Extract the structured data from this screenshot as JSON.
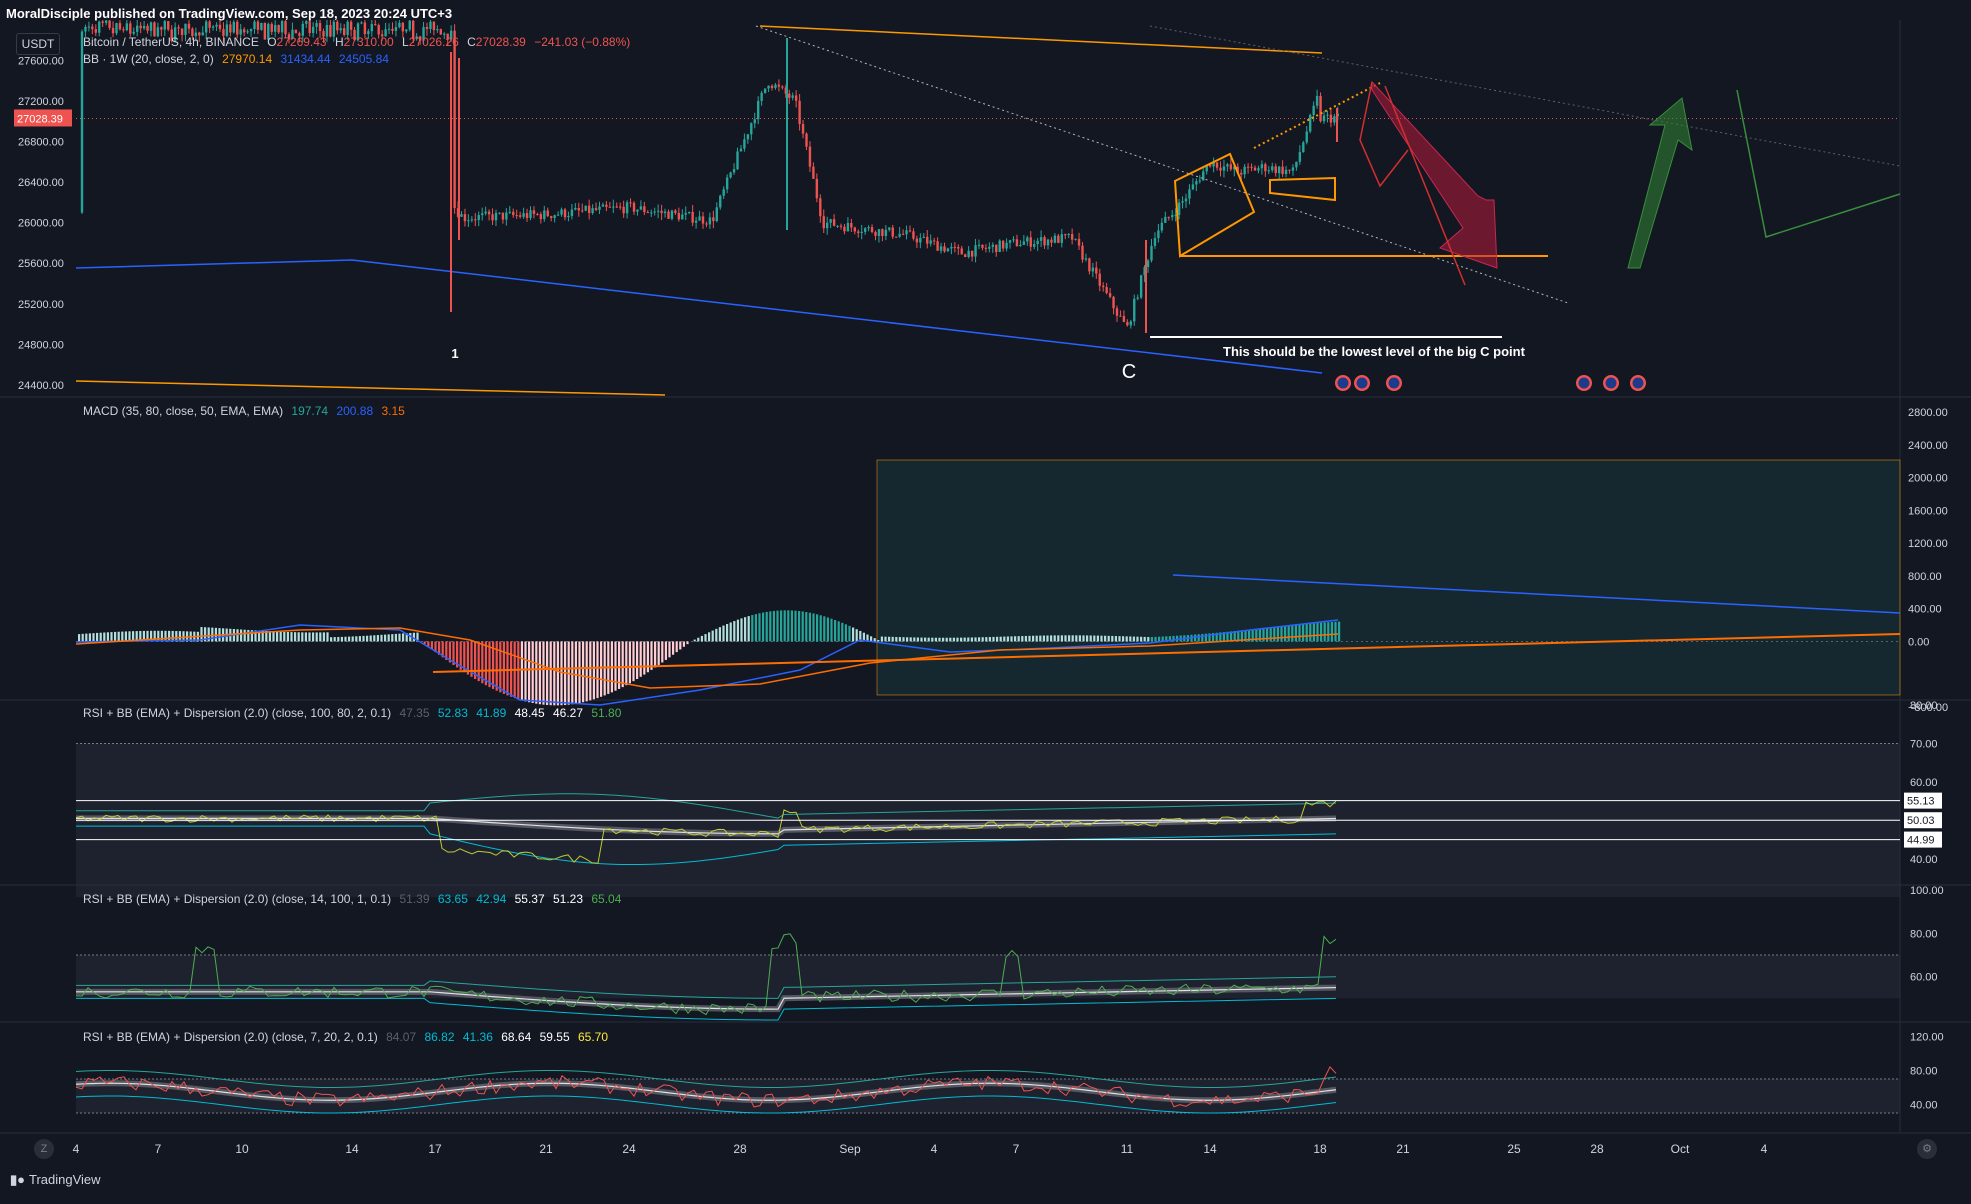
{
  "header": {
    "published": "MoralDisciple published on TradingView.com, Sep 18, 2023 20:24 UTC+3",
    "currency_badge": "USDT"
  },
  "main_legend": {
    "title": "Bitcoin / TetherUS, 4h, BINANCE",
    "o_label": "O",
    "o_value": "27269.43",
    "h_label": "H",
    "h_value": "27310.00",
    "l_label": "L",
    "l_value": "27026.26",
    "c_label": "C",
    "c_value": "27028.39",
    "change": "−241.03 (−0.88%)",
    "bb_title": "BB · 1W (20, close, 2, 0)",
    "bb_values": [
      "27970.14",
      "31434.44",
      "24505.84"
    ]
  },
  "macd_legend": {
    "title": "MACD (35, 80, close, 50, EMA, EMA)",
    "values": [
      "197.74",
      "200.88",
      "3.15"
    ]
  },
  "rsi1_legend": {
    "title": "RSI + BB (EMA) + Dispersion (2.0) (close, 100, 80, 2, 0.1)",
    "values": [
      "47.35",
      "52.83",
      "41.89",
      "48.45",
      "46.27",
      "51.80"
    ]
  },
  "rsi2_legend": {
    "title": "RSI + BB (EMA) + Dispersion (2.0) (close, 14, 100, 1, 0.1)",
    "values": [
      "51.39",
      "63.65",
      "42.94",
      "55.37",
      "51.23",
      "65.04"
    ]
  },
  "rsi3_legend": {
    "title": "RSI + BB (EMA) + Dispersion (2.0) (close, 7, 20, 2, 0.1)",
    "values": [
      "84.07",
      "86.82",
      "41.36",
      "68.64",
      "59.55",
      "65.70"
    ]
  },
  "annotations": {
    "wave_1": "1",
    "wave_c": "C",
    "note": "This should be the lowest level of the big C point"
  },
  "footer": {
    "logo_text": "TradingView",
    "zoom_label": "Z"
  },
  "colors": {
    "background": "#131722",
    "up": "#26a69a",
    "down": "#ef5350",
    "grid_text": "#d1d4dc",
    "bb_mid": "#f7931a",
    "bb_upper": "#ff9800",
    "bb_lower": "#2962ff",
    "macd": "#2962ff",
    "signal": "#ff6d00",
    "hist_pos": "#26a69a",
    "hist_neg": "#ef5350",
    "rsi_line": "#c0ca33",
    "rsi_band": "#00bcd4",
    "arrow_bear": "#b71c3c",
    "arrow_bull": "#2e7d32"
  },
  "chart_data": [
    {
      "type": "candlestick",
      "title": "Bitcoin / TetherUS, 4h, BINANCE",
      "y_ticks": [
        27600,
        27200,
        26800,
        26400,
        26000,
        25600,
        25200,
        24800,
        24400
      ],
      "y_tick_labels": [
        "27600.00",
        "27200.00",
        "26800.00",
        "26400.00",
        "26000.00",
        "25600.00",
        "25200.00",
        "24800.00",
        "24400.00"
      ],
      "ylim": [
        24300,
        28000
      ],
      "last_price": "27028.39",
      "x_tick_labels": [
        "4",
        "7",
        "10",
        "14",
        "17",
        "21",
        "24",
        "28",
        "Sep",
        "4",
        "7",
        "11",
        "14",
        "18",
        "21",
        "25",
        "28",
        "Oct",
        "4"
      ],
      "price_path": [
        {
          "x": "Aug 4",
          "close": 26100
        },
        {
          "x": "Aug 10",
          "close": 26090
        },
        {
          "x": "Aug 17",
          "close": 28300
        },
        {
          "x": "Aug 17",
          "close": 26400
        },
        {
          "x": "Aug 18",
          "close": 26050
        },
        {
          "x": "Aug 21",
          "close": 26080
        },
        {
          "x": "Aug 24",
          "close": 26150
        },
        {
          "x": "Aug 27",
          "close": 26020
        },
        {
          "x": "Aug 29",
          "close": 27400
        },
        {
          "x": "Aug 30",
          "close": 27200
        },
        {
          "x": "Aug 31",
          "close": 26000
        },
        {
          "x": "Sep 3",
          "close": 25880
        },
        {
          "x": "Sep 5",
          "close": 25700
        },
        {
          "x": "Sep 7",
          "close": 25800
        },
        {
          "x": "Sep 9",
          "close": 25850
        },
        {
          "x": "Sep 11",
          "close": 24950
        },
        {
          "x": "Sep 12",
          "close": 25900
        },
        {
          "x": "Sep 13",
          "close": 26200
        },
        {
          "x": "Sep 14",
          "close": 26600
        },
        {
          "x": "Sep 15",
          "close": 26500
        },
        {
          "x": "Sep 16",
          "close": 26550
        },
        {
          "x": "Sep 17",
          "close": 26500
        },
        {
          "x": "Sep 18",
          "close": 27300
        },
        {
          "x": "Sep 18",
          "close": 27028
        }
      ],
      "bollinger_weekly": {
        "middle": "27970.14",
        "upper": "31434.44",
        "lower": "24505.84"
      }
    },
    {
      "type": "bar",
      "title": "MACD (35, 80, close, 50, EMA, EMA)",
      "y_tick_labels": [
        "2800.00",
        "2400.00",
        "2000.00",
        "1600.00",
        "1200.00",
        "800.00",
        "400.00",
        "0.00",
        "−800.00"
      ],
      "ylim": [
        -800,
        2800
      ],
      "values": [
        "197.74",
        "200.88",
        "3.15"
      ]
    },
    {
      "type": "line",
      "title": "RSI + BB (EMA) + Dispersion (2.0) (close, 100, 80, 2, 0.1)",
      "y_tick_labels": [
        "80.00",
        "70.00",
        "60.00",
        "40.00"
      ],
      "marker_labels": [
        "55.13",
        "50.03",
        "44.99"
      ]
    },
    {
      "type": "line",
      "title": "RSI + BB (EMA) + Dispersion (2.0) (close, 14, 100, 1, 0.1)",
      "y_tick_labels": [
        "100.00",
        "80.00",
        "60.00"
      ]
    },
    {
      "type": "line",
      "title": "RSI + BB (EMA) + Dispersion (2.0) (close, 7, 20, 2, 0.1)",
      "y_tick_labels": [
        "120.00",
        "80.00",
        "40.00"
      ]
    }
  ]
}
